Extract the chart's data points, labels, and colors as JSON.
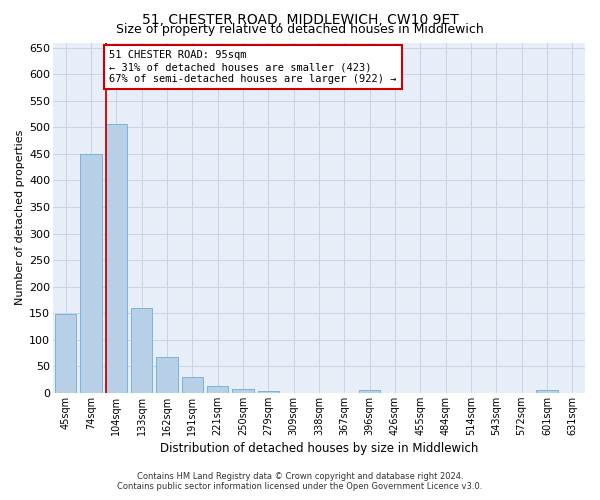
{
  "title": "51, CHESTER ROAD, MIDDLEWICH, CW10 9ET",
  "subtitle": "Size of property relative to detached houses in Middlewich",
  "xlabel": "Distribution of detached houses by size in Middlewich",
  "ylabel": "Number of detached properties",
  "categories": [
    "45sqm",
    "74sqm",
    "104sqm",
    "133sqm",
    "162sqm",
    "191sqm",
    "221sqm",
    "250sqm",
    "279sqm",
    "309sqm",
    "338sqm",
    "367sqm",
    "396sqm",
    "426sqm",
    "455sqm",
    "484sqm",
    "514sqm",
    "543sqm",
    "572sqm",
    "601sqm",
    "631sqm"
  ],
  "values": [
    148,
    450,
    507,
    159,
    68,
    30,
    13,
    8,
    4,
    0,
    0,
    0,
    6,
    0,
    0,
    0,
    0,
    0,
    0,
    5,
    0
  ],
  "bar_color": "#b8cfe8",
  "bar_edge_color": "#6baed6",
  "vline_bar_index": 2,
  "annotation_text_line1": "51 CHESTER ROAD: 95sqm",
  "annotation_text_line2": "← 31% of detached houses are smaller (423)",
  "annotation_text_line3": "67% of semi-detached houses are larger (922) →",
  "annotation_box_color": "#ffffff",
  "annotation_edge_color": "#cc0000",
  "vline_color": "#cc0000",
  "ylim": [
    0,
    660
  ],
  "yticks": [
    0,
    50,
    100,
    150,
    200,
    250,
    300,
    350,
    400,
    450,
    500,
    550,
    600,
    650
  ],
  "grid_color": "#c8d4e8",
  "background_color": "#e8eef8",
  "title_fontsize": 10,
  "subtitle_fontsize": 9,
  "footer_line1": "Contains HM Land Registry data © Crown copyright and database right 2024.",
  "footer_line2": "Contains public sector information licensed under the Open Government Licence v3.0."
}
